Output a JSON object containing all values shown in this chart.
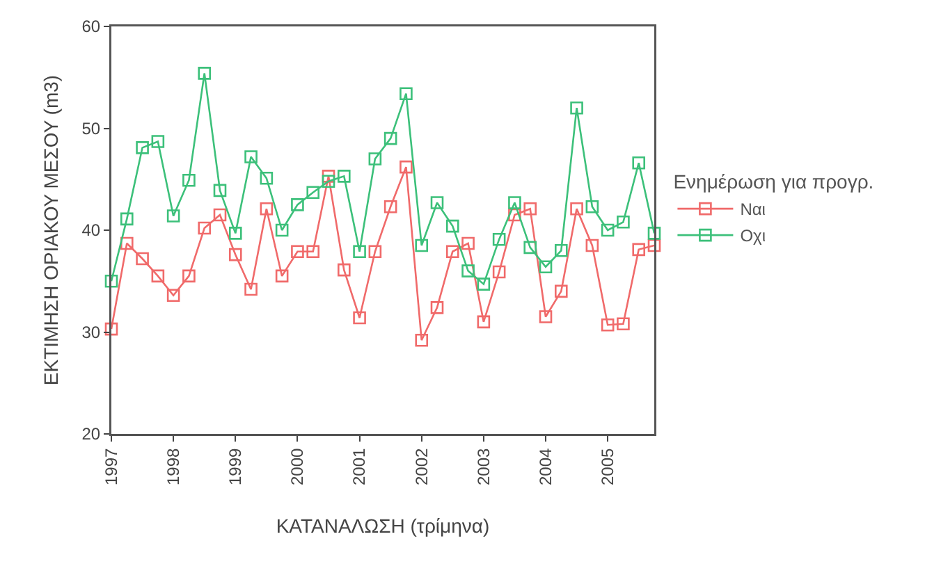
{
  "chart_data": {
    "type": "line",
    "xlabel": "ΚΑΤΑΝΑΛΩΣΗ (τρίμηνα)",
    "ylabel": "ΕΚΤΙΜΗΣΗ ΟΡΙΑΚΟΥ ΜΕΣΟΥ (m3)",
    "legend_title": "Ενημέρωση για προγρ.",
    "x": [
      1997,
      1997.25,
      1997.5,
      1997.75,
      1998,
      1998.25,
      1998.5,
      1998.75,
      1999,
      1999.25,
      1999.5,
      1999.75,
      2000,
      2000.25,
      2000.5,
      2000.75,
      2001,
      2001.25,
      2001.5,
      2001.75,
      2002,
      2002.25,
      2002.5,
      2002.75,
      2003,
      2003.25,
      2003.5,
      2003.75,
      2004,
      2004.25,
      2004.5,
      2004.75,
      2005,
      2005.25,
      2005.5,
      2005.75
    ],
    "series": [
      {
        "name": "Ναι",
        "color": "#f06a6a",
        "values": [
          30.3,
          38.7,
          37.2,
          35.5,
          33.6,
          35.5,
          40.2,
          41.5,
          37.6,
          34.2,
          42.1,
          35.5,
          37.9,
          37.9,
          45.3,
          36.1,
          31.4,
          37.9,
          42.3,
          46.2,
          29.2,
          32.4,
          37.9,
          38.7,
          31.0,
          35.9,
          41.5,
          42.1,
          31.5,
          34.0,
          42.1,
          38.5,
          30.7,
          30.8,
          38.1,
          38.5
        ]
      },
      {
        "name": "Οχι",
        "color": "#3cc07a",
        "values": [
          35.0,
          41.1,
          48.1,
          48.7,
          41.4,
          44.9,
          55.4,
          43.9,
          39.7,
          47.2,
          45.1,
          40.0,
          42.5,
          43.7,
          44.8,
          45.3,
          37.9,
          47.0,
          49.0,
          53.4,
          38.5,
          42.7,
          40.4,
          36.0,
          34.7,
          39.1,
          42.7,
          38.3,
          36.4,
          38.0,
          52.0,
          42.3,
          40.0,
          40.8,
          46.6,
          39.7
        ]
      }
    ],
    "xlim": [
      1997,
      2005.75
    ],
    "xticks": [
      1997,
      1998,
      1999,
      2000,
      2001,
      2002,
      2003,
      2004,
      2005
    ],
    "ylim": [
      20,
      60
    ],
    "yticks": [
      20,
      30,
      40,
      50,
      60
    ],
    "grid": false,
    "legend": "right",
    "marker": "square",
    "line_style": "solid"
  }
}
